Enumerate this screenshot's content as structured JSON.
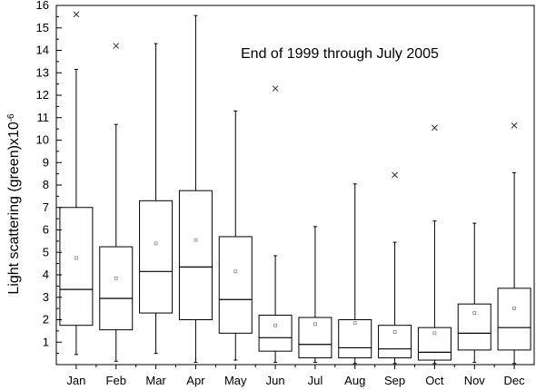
{
  "chart_data": {
    "type": "box",
    "title": "",
    "annotation": "End of 1999 through July 2005",
    "xlabel": "",
    "ylabel": "Light scattering (green)x10",
    "ylabel_exponent": "-6",
    "ylim": [
      0,
      16
    ],
    "yticks": [
      1,
      2,
      3,
      4,
      5,
      6,
      7,
      8,
      9,
      10,
      11,
      12,
      13,
      14,
      15,
      16
    ],
    "categories": [
      "Jan",
      "Feb",
      "Mar",
      "Apr",
      "May",
      "Jun",
      "Jul",
      "Aug",
      "Sep",
      "Oct",
      "Nov",
      "Dec"
    ],
    "boxes": [
      {
        "min": 0.45,
        "q1": 1.75,
        "median": 3.35,
        "q3": 7.0,
        "max": 13.15,
        "mean": 4.75,
        "outlier_max": 15.6
      },
      {
        "min": 0.15,
        "q1": 1.55,
        "median": 2.95,
        "q3": 5.25,
        "max": 10.7,
        "mean": 3.85,
        "outlier_max": 14.2
      },
      {
        "min": 0.5,
        "q1": 2.3,
        "median": 4.15,
        "q3": 7.3,
        "max": 14.3,
        "mean": 5.4,
        "outlier_max": null
      },
      {
        "min": 0.1,
        "q1": 2.0,
        "median": 4.35,
        "q3": 7.75,
        "max": 15.55,
        "mean": 5.55,
        "outlier_max": null
      },
      {
        "min": 0.2,
        "q1": 1.4,
        "median": 2.9,
        "q3": 5.7,
        "max": 11.3,
        "mean": 4.15,
        "outlier_max": null
      },
      {
        "min": 0.1,
        "q1": 0.6,
        "median": 1.2,
        "q3": 2.2,
        "max": 4.85,
        "mean": 1.75,
        "outlier_max": 12.3
      },
      {
        "min": 0.1,
        "q1": 0.3,
        "median": 0.9,
        "q3": 2.1,
        "max": 6.15,
        "mean": 1.8,
        "outlier_max": null
      },
      {
        "min": 0.05,
        "q1": 0.3,
        "median": 0.75,
        "q3": 2.0,
        "max": 8.05,
        "mean": 1.85,
        "outlier_max": null
      },
      {
        "min": 0.05,
        "q1": 0.3,
        "median": 0.7,
        "q3": 1.75,
        "max": 5.45,
        "mean": 1.45,
        "outlier_max": 8.45
      },
      {
        "min": 0.05,
        "q1": 0.2,
        "median": 0.55,
        "q3": 1.65,
        "max": 6.4,
        "mean": 1.4,
        "outlier_max": 10.55
      },
      {
        "min": 0.1,
        "q1": 0.65,
        "median": 1.4,
        "q3": 2.7,
        "max": 6.3,
        "mean": 2.3,
        "outlier_max": null
      },
      {
        "min": 0.05,
        "q1": 0.65,
        "median": 1.65,
        "q3": 3.4,
        "max": 8.55,
        "mean": 2.5,
        "outlier_max": 10.65
      }
    ],
    "grid": false,
    "legend": "none",
    "colors": {
      "box": "#000000",
      "mean_marker": "#888888",
      "background": "#ffffff"
    }
  }
}
